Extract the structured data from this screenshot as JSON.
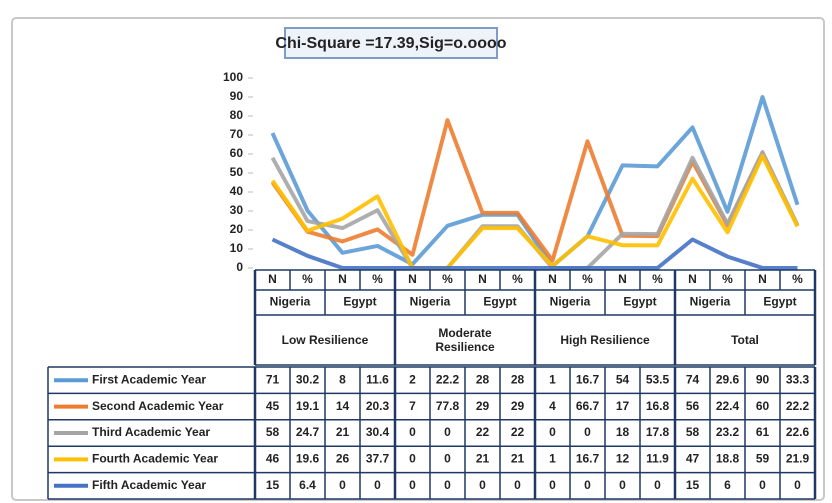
{
  "chart_data": {
    "type": "line",
    "title": "Chi-Square =17.39,Sig=o.oooo",
    "categories": [
      "N",
      "%",
      "N",
      "%",
      "N",
      "%",
      "N",
      "%",
      "N",
      "%",
      "N",
      "%",
      "N",
      "%",
      "N",
      "%"
    ],
    "countries": [
      "Nigeria",
      "Egypt",
      "Nigeria",
      "Egypt",
      "Nigeria",
      "Egypt",
      "Nigeria",
      "Egypt"
    ],
    "groups": [
      "Low Resilience",
      "Moderate Resilience",
      "High Resilience",
      "Total"
    ],
    "ylim": [
      0,
      100
    ],
    "yticks": [
      0,
      10,
      20,
      30,
      40,
      50,
      60,
      70,
      80,
      90,
      100
    ],
    "series": [
      {
        "name": "First Academic Year",
        "color": "#5b9bd5",
        "values": [
          71,
          30.2,
          8,
          11.6,
          2,
          22.2,
          28,
          28,
          1,
          16.7,
          54,
          53.5,
          74,
          29.6,
          90,
          33.3
        ]
      },
      {
        "name": "Second Academic Year",
        "color": "#ed7d31",
        "values": [
          45,
          19.1,
          14,
          20.3,
          7,
          77.8,
          29,
          29,
          4,
          66.7,
          17,
          16.8,
          56,
          22.4,
          60,
          22.2
        ]
      },
      {
        "name": "Third Academic Year",
        "color": "#a5a5a5",
        "values": [
          58,
          24.7,
          21,
          30.4,
          0,
          0,
          22,
          22,
          0,
          0,
          18,
          17.8,
          58,
          23.2,
          61,
          22.6
        ]
      },
      {
        "name": "Fourth  Academic Year",
        "color": "#ffc000",
        "values": [
          46,
          19.6,
          26,
          37.7,
          0,
          0,
          21,
          21,
          1,
          16.7,
          12,
          11.9,
          47,
          18.8,
          59,
          21.9
        ]
      },
      {
        "name": "Fifth Academic Year",
        "color": "#4472c4",
        "values": [
          15,
          6.4,
          0,
          0,
          0,
          0,
          0,
          0,
          0,
          0,
          0,
          0,
          15,
          6,
          0,
          0
        ]
      }
    ]
  }
}
